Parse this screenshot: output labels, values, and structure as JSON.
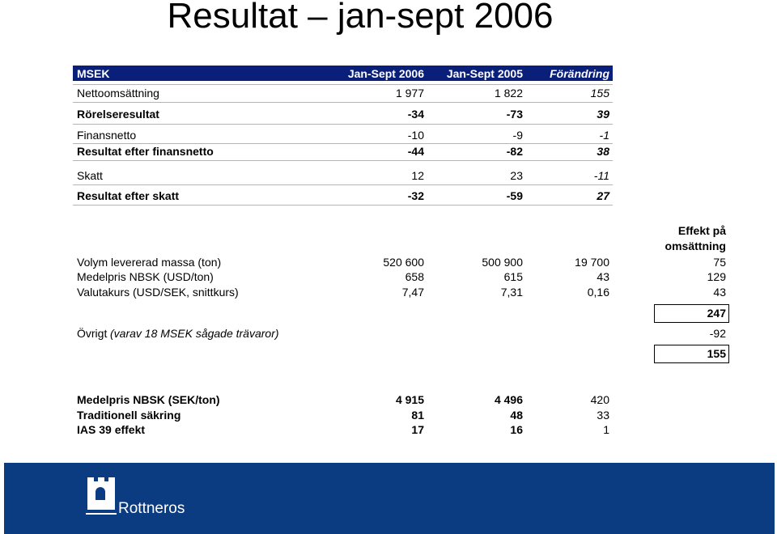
{
  "title": "Resultat – jan-sept 2006",
  "table": {
    "header": [
      "MSEK",
      "Jan-Sept 2006",
      "Jan-Sept 2005",
      "Förändring"
    ],
    "rows": [
      [
        "Nettoomsättning",
        "1 977",
        "1 822",
        "155"
      ],
      [
        "Rörelseresultat",
        "-34",
        "-73",
        "39"
      ],
      [
        "Finansnetto",
        "-10",
        "-9",
        "-1"
      ],
      [
        "Resultat efter finansnetto",
        "-44",
        "-82",
        "38"
      ],
      [
        "Skatt",
        "12",
        "23",
        "-11"
      ],
      [
        "Resultat efter skatt",
        "-32",
        "-59",
        "27"
      ]
    ]
  },
  "effect": {
    "heading": [
      "Effekt på",
      "omsättning"
    ],
    "rows": [
      [
        "Volym levererad massa (ton)",
        "520 600",
        "500 900",
        "19 700",
        "75"
      ],
      [
        "Medelpris NBSK (USD/ton)",
        "658",
        "615",
        "43",
        "129"
      ],
      [
        "Valutakurs (USD/SEK, snittkurs)",
        "7,47",
        "7,31",
        "0,16",
        "43"
      ]
    ],
    "subtotal": "247",
    "other": {
      "label": "Övrigt",
      "note": "(varav 18 MSEK sågade trävaror)",
      "value": "-92"
    },
    "total": "155"
  },
  "prices": {
    "rows": [
      [
        "Medelpris NBSK (SEK/ton)",
        "4 915",
        "4 496",
        "420"
      ],
      [
        "Traditionell säkring",
        "81",
        "48",
        "33"
      ],
      [
        "IAS 39 effekt",
        "17",
        "16",
        "1"
      ]
    ]
  },
  "footer": {
    "logo_text": "Rottneros"
  }
}
